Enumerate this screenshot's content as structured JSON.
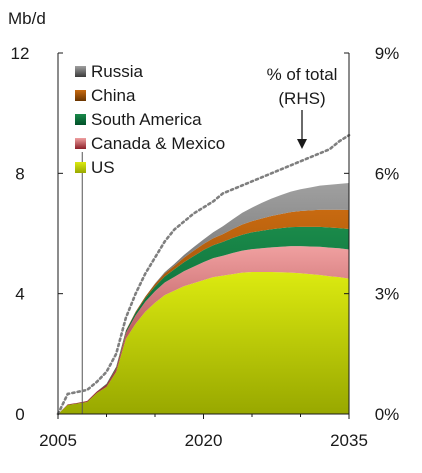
{
  "chart_data": {
    "type": "area",
    "ylabel_left": "Mb/d",
    "annotation": [
      "% of total",
      "(RHS)"
    ],
    "x": [
      2005,
      2006,
      2007,
      2008,
      2009,
      2010,
      2011,
      2012,
      2013,
      2014,
      2015,
      2016,
      2017,
      2018,
      2019,
      2020,
      2021,
      2022,
      2023,
      2024,
      2025,
      2026,
      2027,
      2028,
      2029,
      2030,
      2031,
      2032,
      2033,
      2034,
      2035
    ],
    "xticks": [
      "2005",
      "2020",
      "2035"
    ],
    "yticks_left": [
      "0",
      "4",
      "8",
      "12"
    ],
    "yticks_right": [
      "0%",
      "3%",
      "6%",
      "9%"
    ],
    "ylim_left": [
      0,
      12
    ],
    "ylim_right": [
      0,
      9
    ],
    "series": [
      {
        "name": "US",
        "color": "#c8dc00",
        "values": [
          0.0,
          0.3,
          0.35,
          0.4,
          0.7,
          0.9,
          1.4,
          2.5,
          3.0,
          3.4,
          3.7,
          3.95,
          4.1,
          4.25,
          4.35,
          4.45,
          4.55,
          4.6,
          4.65,
          4.7,
          4.72,
          4.72,
          4.72,
          4.71,
          4.7,
          4.68,
          4.65,
          4.62,
          4.58,
          4.55,
          4.5
        ]
      },
      {
        "name": "Canada & Mexico",
        "color": "#e07878",
        "values": [
          0.0,
          0.02,
          0.02,
          0.03,
          0.05,
          0.08,
          0.12,
          0.2,
          0.28,
          0.33,
          0.38,
          0.42,
          0.46,
          0.5,
          0.55,
          0.6,
          0.63,
          0.66,
          0.7,
          0.73,
          0.76,
          0.79,
          0.82,
          0.85,
          0.88,
          0.9,
          0.92,
          0.94,
          0.95,
          0.96,
          0.97
        ]
      },
      {
        "name": "South America",
        "color": "#006b3c",
        "values": [
          0.0,
          0.0,
          0.0,
          0.0,
          0.0,
          0.02,
          0.04,
          0.06,
          0.09,
          0.12,
          0.16,
          0.2,
          0.25,
          0.3,
          0.35,
          0.4,
          0.43,
          0.46,
          0.5,
          0.53,
          0.56,
          0.58,
          0.6,
          0.62,
          0.63,
          0.64,
          0.65,
          0.66,
          0.67,
          0.67,
          0.68
        ]
      },
      {
        "name": "China",
        "color": "#b85c00",
        "values": [
          0.0,
          0.0,
          0.0,
          0.0,
          0.0,
          0.0,
          0.01,
          0.02,
          0.03,
          0.05,
          0.08,
          0.1,
          0.12,
          0.15,
          0.18,
          0.2,
          0.23,
          0.26,
          0.3,
          0.34,
          0.37,
          0.41,
          0.44,
          0.47,
          0.5,
          0.53,
          0.55,
          0.57,
          0.59,
          0.61,
          0.63
        ]
      },
      {
        "name": "Russia",
        "color": "#7a7a7a",
        "values": [
          0.0,
          0.0,
          0.0,
          0.0,
          0.0,
          0.0,
          0.0,
          0.0,
          0.0,
          0.0,
          0.02,
          0.04,
          0.06,
          0.09,
          0.12,
          0.15,
          0.2,
          0.26,
          0.32,
          0.39,
          0.45,
          0.52,
          0.58,
          0.63,
          0.68,
          0.72,
          0.76,
          0.8,
          0.83,
          0.86,
          0.9
        ]
      }
    ],
    "share_rhs": {
      "name": "% of total",
      "axis": "right",
      "color": "#7f7f7f",
      "values": [
        0.0,
        0.5,
        0.55,
        0.6,
        0.8,
        1.05,
        1.5,
        2.4,
        3.0,
        3.5,
        3.9,
        4.3,
        4.6,
        4.8,
        5.0,
        5.15,
        5.3,
        5.5,
        5.6,
        5.7,
        5.8,
        5.9,
        6.0,
        6.1,
        6.2,
        6.3,
        6.4,
        6.5,
        6.6,
        6.8,
        6.95
      ]
    },
    "marker_line_x": 2007.5,
    "grid": false,
    "legend_position": "top-left"
  }
}
